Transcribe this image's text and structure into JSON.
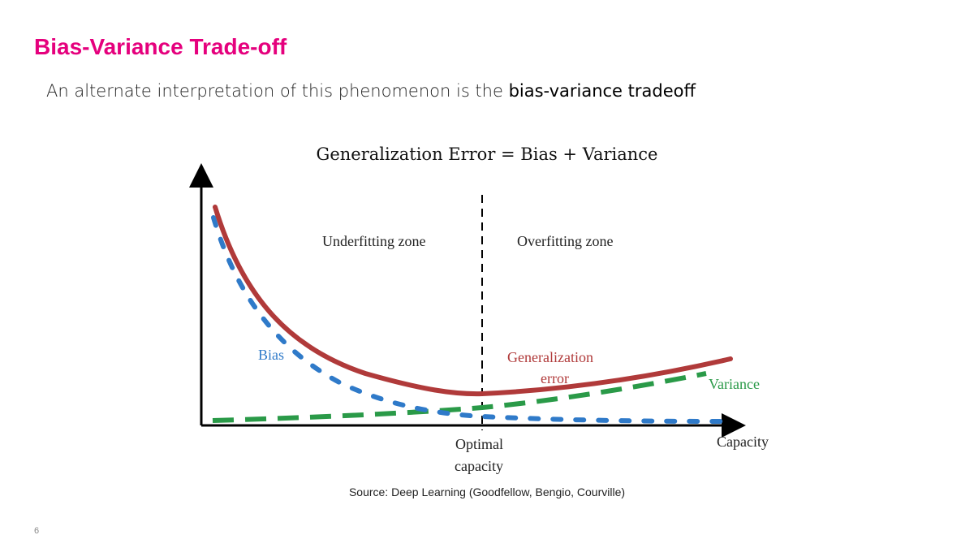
{
  "slide": {
    "title": "Bias-Variance Trade-off",
    "subtitle_prefix": "An alternate interpretation of this phenomenon is the ",
    "subtitle_emphasis": "bias-variance tradeoff",
    "equation": "Generalization Error = Bias + Variance",
    "source": "Source: Deep Learning (Goodfellow, Bengio, Courville)",
    "page_number": "6"
  },
  "diagram": {
    "zone_left": "Underfitting zone",
    "zone_right": "Overfitting zone",
    "bias_label": "Bias",
    "generalization_label_1": "Generalization",
    "generalization_label_2": "error",
    "variance_label": "Variance",
    "optimal_label_1": "Optimal",
    "optimal_label_2": "capacity",
    "x_axis_label": "Capacity",
    "colors": {
      "generalization": "#b03a3a",
      "bias": "#2f7ac9",
      "variance": "#2a9a48"
    }
  }
}
